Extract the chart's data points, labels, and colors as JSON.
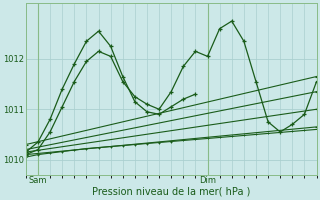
{
  "xlabel": "Pression niveau de la mer( hPa )",
  "background_color": "#cce8e8",
  "plot_bg_color": "#cce8e8",
  "grid_color": "#aacfcf",
  "line_color": "#1a5c1a",
  "text_color": "#1a5c1a",
  "ylim": [
    1009.7,
    1013.1
  ],
  "yticks": [
    1010,
    1011,
    1012
  ],
  "xlim": [
    0,
    48
  ],
  "sam_x": 0,
  "dim_x": 30,
  "vline_sam": 0,
  "vline_dim": 30,
  "series1_x": [
    0,
    2,
    4,
    6,
    8,
    10,
    12,
    14,
    16,
    18,
    20,
    22,
    24,
    26,
    28
  ],
  "series1_y": [
    1010.15,
    1010.35,
    1010.8,
    1011.4,
    1011.9,
    1012.35,
    1012.55,
    1012.25,
    1011.65,
    1011.15,
    1010.95,
    1010.9,
    1011.05,
    1011.2,
    1011.3
  ],
  "series2_x": [
    0,
    2,
    4,
    6,
    8,
    10,
    12,
    14,
    16,
    18,
    20,
    22,
    24,
    26,
    28,
    30,
    32,
    34,
    36,
    38,
    40,
    42,
    44,
    46,
    48
  ],
  "series2_y": [
    1010.1,
    1010.2,
    1010.55,
    1011.05,
    1011.55,
    1011.95,
    1012.15,
    1012.05,
    1011.55,
    1011.25,
    1011.1,
    1011.0,
    1011.35,
    1011.85,
    1012.15,
    1012.05,
    1012.6,
    1012.75,
    1012.35,
    1011.55,
    1010.75,
    1010.55,
    1010.7,
    1010.9,
    1011.55
  ],
  "trend1_x": [
    0,
    48
  ],
  "trend1_y": [
    1010.3,
    1011.65
  ],
  "trend2_x": [
    0,
    48
  ],
  "trend2_y": [
    1010.2,
    1011.35
  ],
  "trend3_x": [
    0,
    48
  ],
  "trend3_y": [
    1010.15,
    1011.0
  ],
  "trend4_x": [
    0,
    48
  ],
  "trend4_y": [
    1010.1,
    1010.65
  ],
  "flat_x": [
    0,
    2,
    4,
    6,
    8,
    10,
    12,
    14,
    16,
    18,
    20,
    22,
    24,
    26,
    28,
    30,
    32,
    34,
    36,
    38,
    40,
    42,
    44,
    46,
    48
  ],
  "flat_y": [
    1010.05,
    1010.1,
    1010.13,
    1010.16,
    1010.19,
    1010.22,
    1010.24,
    1010.26,
    1010.28,
    1010.3,
    1010.32,
    1010.34,
    1010.36,
    1010.38,
    1010.4,
    1010.42,
    1010.44,
    1010.46,
    1010.48,
    1010.5,
    1010.52,
    1010.54,
    1010.56,
    1010.58,
    1010.6
  ]
}
